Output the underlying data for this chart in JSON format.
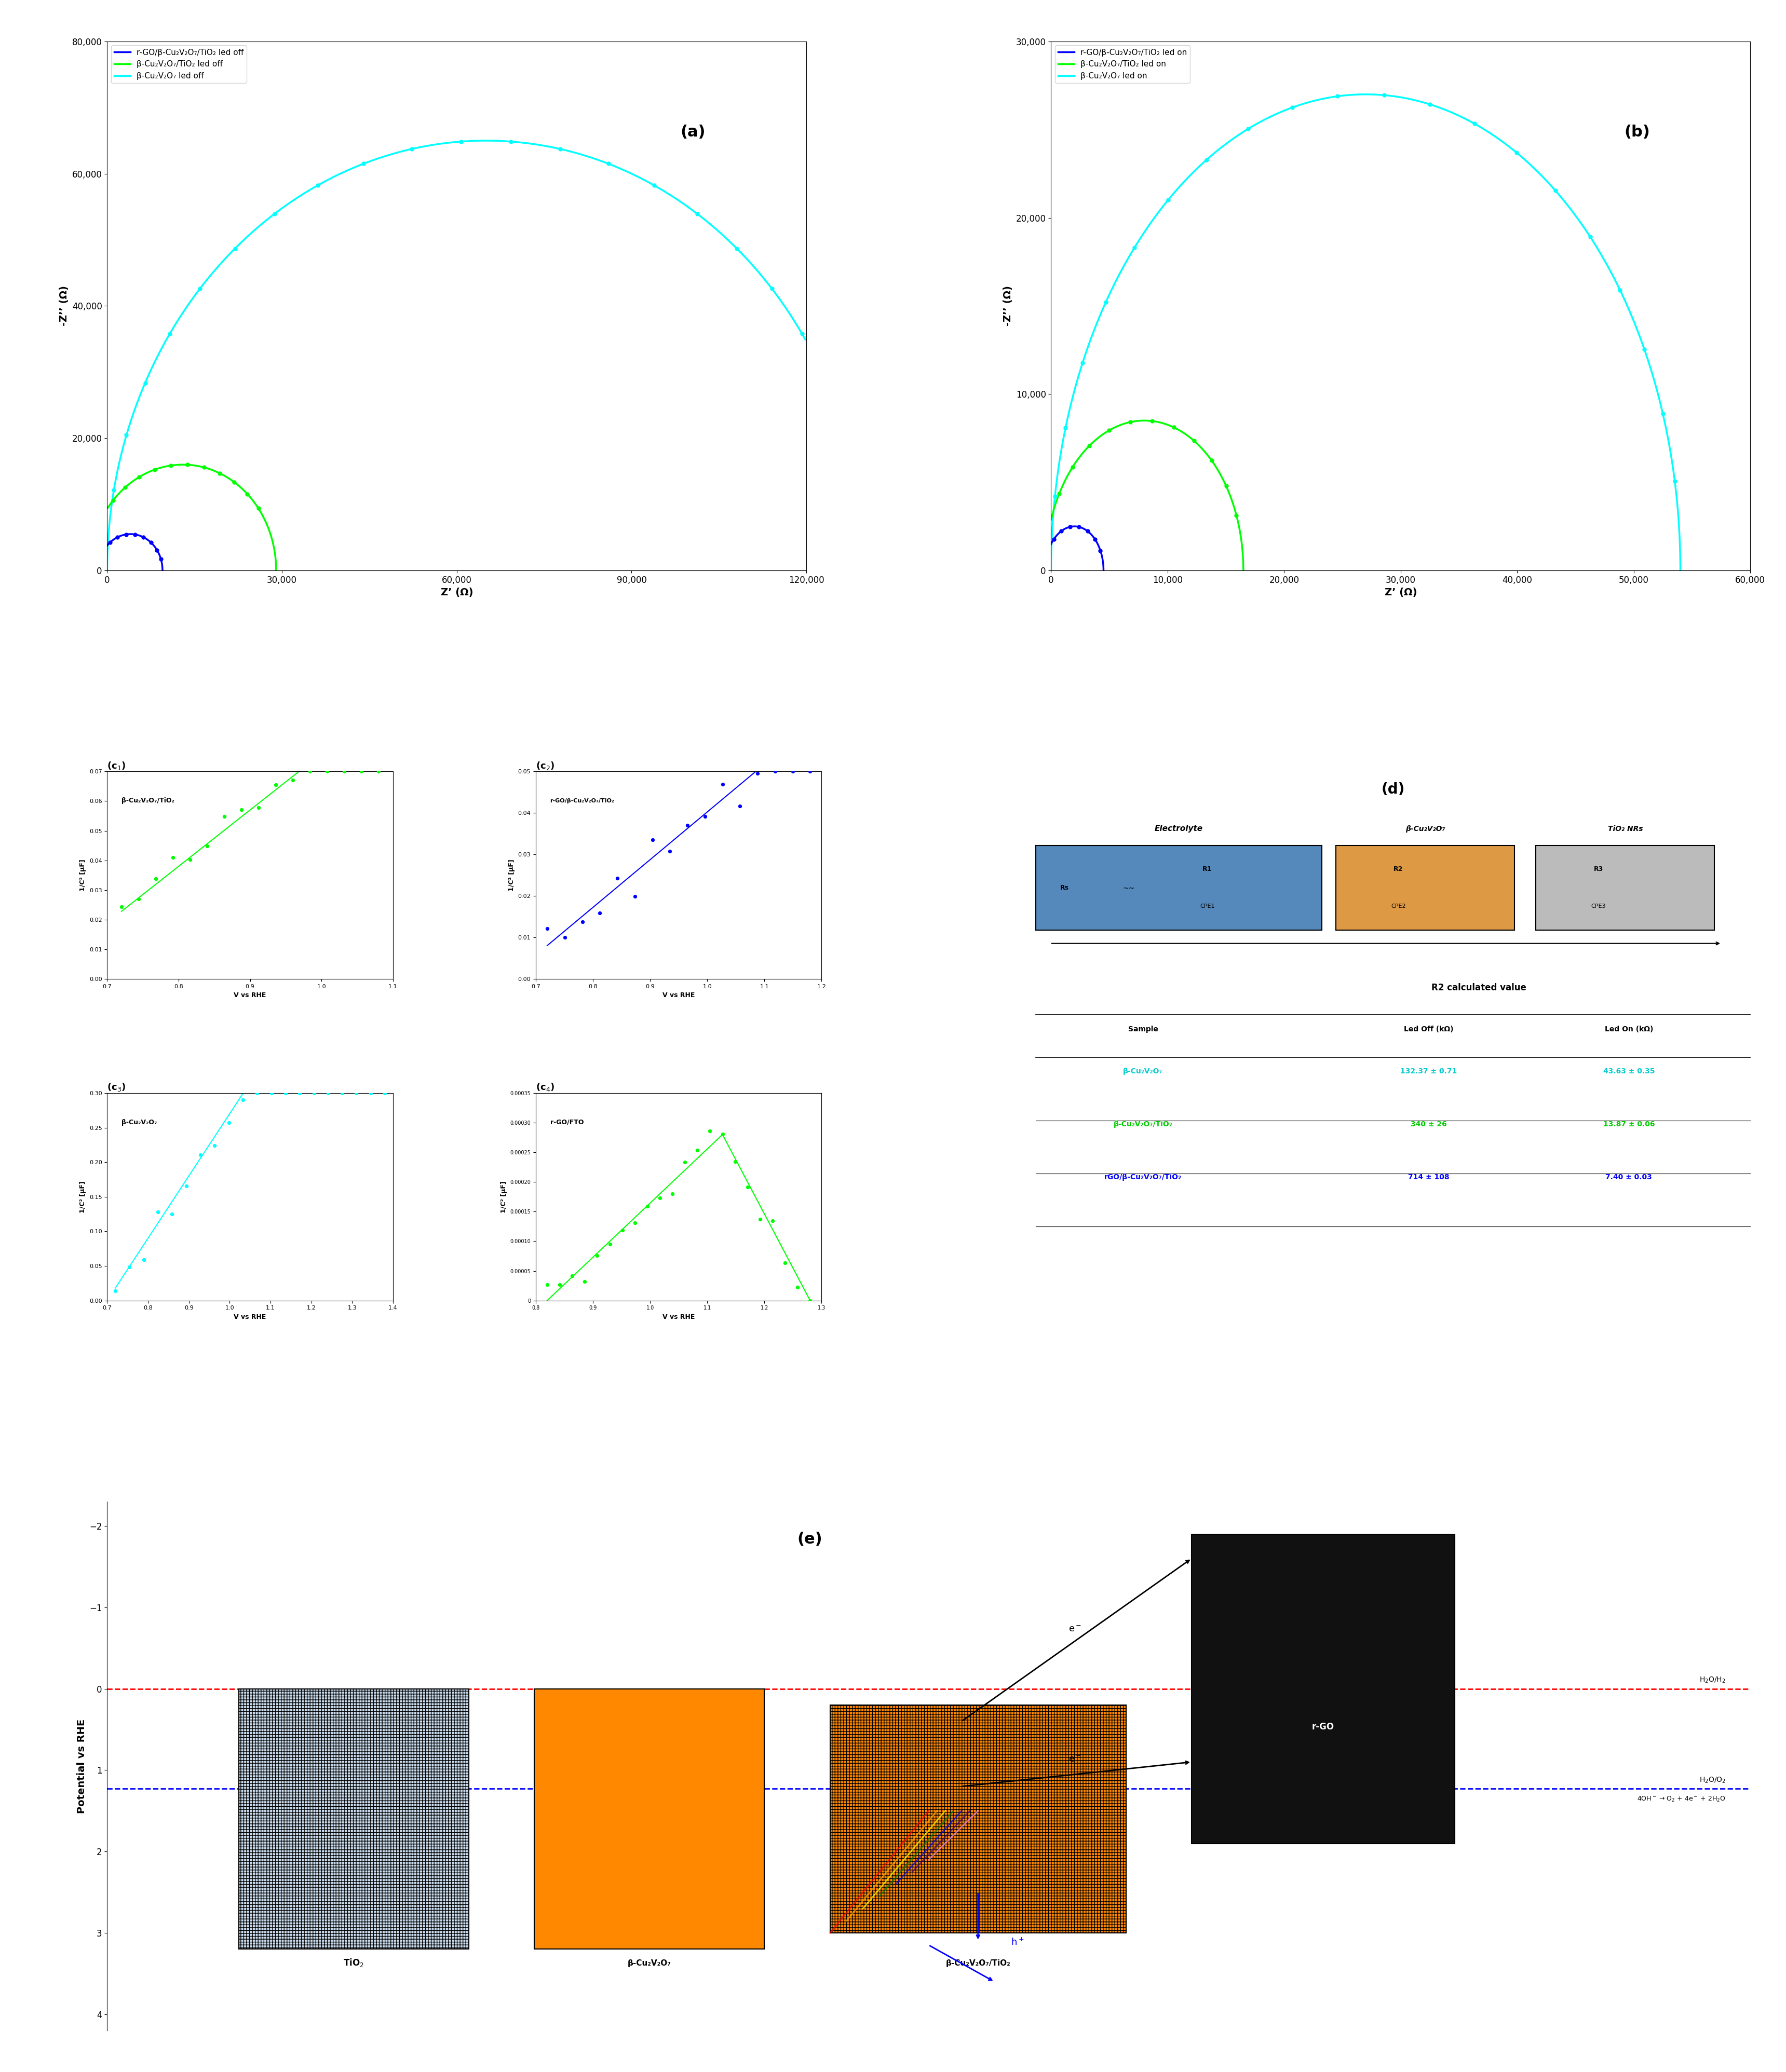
{
  "panel_a": {
    "title": "(a)",
    "xlabel": "Z’ (Ω)",
    "ylabel": "-Z’’ (Ω)",
    "xlim": [
      0,
      120000
    ],
    "ylim": [
      0,
      80000
    ],
    "xticks": [
      0,
      30000,
      60000,
      90000,
      120000
    ],
    "yticks": [
      0,
      20000,
      40000,
      60000,
      80000
    ],
    "legend": [
      {
        "label": "r-GO/β-Cu₂V₂O₇/TiO₂ led off",
        "color": "#0000FF"
      },
      {
        "label": "β-Cu₂V₂O₇/TiO₂ led off",
        "color": "#00CC00"
      },
      {
        "label": "β-Cu₂V₂O₇ led off",
        "color": "#00CCCC"
      }
    ]
  },
  "panel_b": {
    "title": "(b)",
    "xlabel": "Z’ (Ω)",
    "ylabel": "-Z’’ (Ω)",
    "xlim": [
      0,
      60000
    ],
    "ylim": [
      0,
      30000
    ],
    "xticks": [
      0,
      10000,
      20000,
      30000,
      40000,
      50000,
      60000
    ],
    "yticks": [
      0,
      10000,
      20000,
      30000
    ],
    "legend": [
      {
        "label": "r-GO/β-Cu₂V₂O₇/TiO₂ led on",
        "color": "#0000FF"
      },
      {
        "label": "β-Cu₂V₂O₇/TiO₂ led on",
        "color": "#00CC00"
      },
      {
        "label": "β-Cu₂V₂O₇ led on",
        "color": "#00CCCC"
      }
    ]
  },
  "panel_c1": {
    "title": "β-Cu₂V₂O₇/TiO₂",
    "xlabel": "V vs RHE",
    "ylabel": "1/C² [μF]",
    "xlim": [
      0.7,
      1.1
    ],
    "ylim": [
      0,
      0.07
    ],
    "color": "#00CC00",
    "label": "(c$_1$)"
  },
  "panel_c2": {
    "title": "r-GO/β-Cu₂V₂O₇/TiO₂",
    "xlabel": "V vs RHE",
    "ylabel": "1/C² [μF]",
    "xlim": [
      0.7,
      1.2
    ],
    "ylim": [
      0,
      0.05
    ],
    "color": "#0000FF",
    "label": "(c$_2$)"
  },
  "panel_c3": {
    "title": "β-Cu₂V₂O₇",
    "xlabel": "V vs RHE",
    "ylabel": "1/C² [μF]",
    "xlim": [
      0.7,
      1.4
    ],
    "ylim": [
      0,
      0.3
    ],
    "color": "#00CCCC",
    "label": "(c$_3$)"
  },
  "panel_c4": {
    "title": "r-GO/FTO",
    "xlabel": "V vs RHE",
    "ylabel": "1/C² [μF]",
    "xlim": [
      0.8,
      1.3
    ],
    "ylim": [
      0,
      0.00035
    ],
    "color": "#00CC00",
    "label": "(c$_4$)"
  },
  "panel_d": {
    "title": "(d)",
    "circuit_label": "Electrolyte",
    "beta_label": "β-Cu₂V₂O₇",
    "tio2_label": "TiO₂ NRs",
    "table_title": "R2 calculated value",
    "headers": [
      "Sample",
      "Led Off (kΩ)",
      "Led On (kΩ)"
    ],
    "rows": [
      {
        "sample": "β-Cu₂V₂O₇",
        "led_off": "132.37 ± 0.71",
        "led_on": "43.63 ± 0.35",
        "sample_color": "#00CCCC",
        "off_color": "#00CCCC",
        "on_color": "#00CCCC"
      },
      {
        "sample": "β-Cu₂V₂O₇/TiO₂",
        "led_off": "340 ± 26",
        "led_on": "13.87 ± 0.06",
        "sample_color": "#00CC00",
        "off_color": "#00CC00",
        "on_color": "#00CC00"
      },
      {
        "sample": "rGO/β-Cu₂V₂O₇/TiO₂",
        "led_off": "714 ± 108",
        "led_on": "7.40 ± 0.03",
        "sample_color": "#0000FF",
        "off_color": "#0000FF",
        "on_color": "#0000FF"
      }
    ]
  },
  "panel_e": {
    "title": "(e)",
    "ylabel": "Potential vs RHE",
    "labels": {
      "tio2": "TiO$_2$",
      "beta": "β-Cu₂V₂O₇",
      "composite": "β-Cu₂V₂O₇/TiO₂",
      "rgo": "r-GO"
    },
    "h2o_h2": "H$_2$O/H$_2$",
    "h2o_o2": "H$_2$O/O$_2$",
    "reaction": "4OH$^-$ → O$_2$ + 4e$^-$ + 2H$_2$O"
  }
}
